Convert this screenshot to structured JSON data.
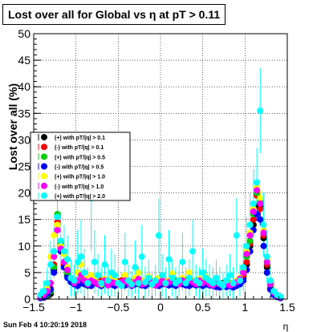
{
  "title": "Lost over all for Global vs    η at pT > 0.11",
  "timestamp": "Sun Feb  4 10:20:19 2018",
  "chart_data": {
    "type": "scatter",
    "xlabel": "η",
    "ylabel": "Lost over all (%)",
    "xlim": [
      -1.5,
      1.5
    ],
    "ylim": [
      0,
      50
    ],
    "x_ticks": [
      -1.5,
      -1,
      -0.5,
      0,
      0.5,
      1,
      1.5
    ],
    "x_tick_labels": [
      "−1.5",
      "−1",
      "−0.5",
      "0",
      "0.5",
      "1",
      "1.5"
    ],
    "y_ticks": [
      0,
      5,
      10,
      15,
      20,
      25,
      30,
      35,
      40,
      45,
      50
    ],
    "y_tick_labels": [
      "0",
      "5",
      "10",
      "15",
      "20",
      "25",
      "30",
      "35",
      "40",
      "45",
      "50"
    ],
    "grid": true,
    "legend_position": "left",
    "series": [
      {
        "name": "(+) with pT/|q| > 0.1",
        "color": "#000000",
        "marker": "circle",
        "x": [
          -1.42,
          -1.38,
          -1.34,
          -1.3,
          -1.26,
          -1.22,
          -1.18,
          -1.14,
          -1.1,
          -1.06,
          -1.02,
          -0.98,
          -0.94,
          -0.9,
          -0.86,
          -0.82,
          -0.78,
          -0.74,
          -0.7,
          -0.66,
          -0.62,
          -0.58,
          -0.54,
          -0.5,
          -0.46,
          -0.42,
          -0.38,
          -0.34,
          -0.3,
          -0.26,
          -0.22,
          -0.18,
          -0.14,
          -0.1,
          -0.06,
          -0.02,
          0.02,
          0.06,
          0.1,
          0.14,
          0.18,
          0.22,
          0.26,
          0.3,
          0.34,
          0.38,
          0.42,
          0.46,
          0.5,
          0.54,
          0.58,
          0.62,
          0.66,
          0.7,
          0.74,
          0.78,
          0.82,
          0.86,
          0.9,
          0.94,
          0.98,
          1.02,
          1.06,
          1.1,
          1.14,
          1.18,
          1.22,
          1.26,
          1.3,
          1.34,
          1.38,
          1.42
        ],
        "y": [
          0.2,
          0.3,
          0.6,
          1.0,
          5.5,
          15.5,
          9.5,
          6.0,
          4.5,
          3.5,
          3.0,
          3.2,
          3.5,
          3.2,
          3.0,
          2.8,
          3.0,
          3.0,
          3.2,
          3.3,
          3.0,
          3.0,
          3.2,
          3.3,
          3.5,
          3.0,
          3.2,
          3.0,
          2.8,
          3.0,
          3.2,
          3.0,
          3.2,
          3.5,
          3.3,
          3.0,
          3.5,
          3.2,
          3.0,
          2.8,
          3.0,
          3.2,
          3.0,
          3.5,
          3.2,
          3.0,
          3.0,
          2.8,
          3.0,
          3.2,
          3.0,
          2.8,
          2.5,
          2.5,
          3.0,
          2.8,
          2.5,
          2.5,
          2.8,
          3.0,
          4.0,
          6.5,
          10.0,
          14.0,
          17.5,
          17.5,
          11.5,
          6.0,
          2.0,
          1.0,
          0.5,
          0.3
        ]
      },
      {
        "name": "(-) with pT/|q| > 0.1",
        "color": "#ff0000",
        "marker": "circle",
        "x": [
          -1.42,
          -1.38,
          -1.34,
          -1.3,
          -1.26,
          -1.22,
          -1.18,
          -1.14,
          -1.1,
          -1.06,
          -1.02,
          -0.98,
          -0.94,
          -0.9,
          -0.86,
          -0.82,
          -0.78,
          -0.74,
          -0.7,
          -0.66,
          -0.62,
          -0.58,
          -0.54,
          -0.5,
          -0.46,
          -0.42,
          -0.38,
          -0.34,
          -0.3,
          -0.26,
          -0.22,
          -0.18,
          -0.14,
          -0.1,
          -0.06,
          -0.02,
          0.02,
          0.06,
          0.1,
          0.14,
          0.18,
          0.22,
          0.26,
          0.3,
          0.34,
          0.38,
          0.42,
          0.46,
          0.5,
          0.54,
          0.58,
          0.62,
          0.66,
          0.7,
          0.74,
          0.78,
          0.82,
          0.86,
          0.9,
          0.94,
          0.98,
          1.02,
          1.06,
          1.1,
          1.14,
          1.18,
          1.22,
          1.26,
          1.3,
          1.34,
          1.38,
          1.42
        ],
        "y": [
          0.5,
          0.8,
          1.2,
          2.0,
          6.5,
          14.5,
          10.0,
          6.5,
          5.0,
          3.8,
          3.2,
          3.0,
          3.2,
          3.5,
          3.0,
          2.8,
          3.2,
          3.0,
          3.5,
          3.2,
          3.0,
          3.3,
          3.0,
          3.2,
          3.5,
          3.2,
          3.0,
          3.2,
          3.0,
          3.3,
          3.0,
          3.2,
          3.0,
          3.2,
          3.5,
          3.2,
          3.0,
          3.3,
          3.2,
          3.0,
          3.2,
          3.0,
          3.2,
          3.0,
          3.3,
          3.5,
          3.0,
          3.2,
          3.0,
          2.8,
          3.2,
          3.0,
          2.8,
          2.6,
          2.8,
          3.0,
          2.6,
          2.5,
          3.0,
          3.2,
          4.5,
          7.0,
          10.5,
          15.0,
          19.5,
          17.0,
          12.0,
          6.5,
          2.5,
          1.2,
          0.6,
          0.4
        ]
      },
      {
        "name": "(+) with pT/|q| > 0.5",
        "color": "#00cc00",
        "marker": "circle",
        "x": [
          -1.42,
          -1.38,
          -1.34,
          -1.3,
          -1.26,
          -1.22,
          -1.18,
          -1.14,
          -1.1,
          -1.06,
          -1.02,
          -0.98,
          -0.94,
          -0.9,
          -0.86,
          -0.82,
          -0.78,
          -0.74,
          -0.7,
          -0.66,
          -0.62,
          -0.58,
          -0.54,
          -0.5,
          -0.46,
          -0.42,
          -0.38,
          -0.34,
          -0.3,
          -0.26,
          -0.22,
          -0.18,
          -0.14,
          -0.1,
          -0.06,
          -0.02,
          0.02,
          0.06,
          0.1,
          0.14,
          0.18,
          0.22,
          0.26,
          0.3,
          0.34,
          0.38,
          0.42,
          0.46,
          0.5,
          0.54,
          0.58,
          0.62,
          0.66,
          0.7,
          0.74,
          0.78,
          0.82,
          0.86,
          0.9,
          0.94,
          0.98,
          1.02,
          1.06,
          1.1,
          1.14,
          1.18,
          1.22,
          1.26,
          1.3,
          1.34,
          1.38,
          1.42
        ],
        "y": [
          0.3,
          0.5,
          0.8,
          1.5,
          6.0,
          16.0,
          10.5,
          7.0,
          5.0,
          3.5,
          3.0,
          2.8,
          3.5,
          3.0,
          2.5,
          3.2,
          3.5,
          2.8,
          3.0,
          3.5,
          2.8,
          3.2,
          3.5,
          3.0,
          2.8,
          3.3,
          3.5,
          3.0,
          3.2,
          2.8,
          3.5,
          3.0,
          2.8,
          3.2,
          3.0,
          3.5,
          3.2,
          2.8,
          3.0,
          3.3,
          3.5,
          2.8,
          3.2,
          3.0,
          2.8,
          3.5,
          3.2,
          3.0,
          2.8,
          3.2,
          3.0,
          2.7,
          2.8,
          3.0,
          2.6,
          2.8,
          3.0,
          2.7,
          3.0,
          3.5,
          5.0,
          8.0,
          11.0,
          16.0,
          20.0,
          18.5,
          12.5,
          7.0,
          2.5,
          1.0,
          0.4,
          0.3
        ]
      },
      {
        "name": "(-) with pT/|q| > 0.5",
        "color": "#0000ff",
        "marker": "circle",
        "x": [
          -1.42,
          -1.38,
          -1.34,
          -1.3,
          -1.26,
          -1.22,
          -1.18,
          -1.14,
          -1.1,
          -1.06,
          -1.02,
          -0.98,
          -0.94,
          -0.9,
          -0.86,
          -0.82,
          -0.78,
          -0.74,
          -0.7,
          -0.66,
          -0.62,
          -0.58,
          -0.54,
          -0.5,
          -0.46,
          -0.42,
          -0.38,
          -0.34,
          -0.3,
          -0.26,
          -0.22,
          -0.18,
          -0.14,
          -0.1,
          -0.06,
          -0.02,
          0.02,
          0.06,
          0.1,
          0.14,
          0.18,
          0.22,
          0.26,
          0.3,
          0.34,
          0.38,
          0.42,
          0.46,
          0.5,
          0.54,
          0.58,
          0.62,
          0.66,
          0.7,
          0.74,
          0.78,
          0.82,
          0.86,
          0.9,
          0.94,
          0.98,
          1.02,
          1.06,
          1.1,
          1.14,
          1.18,
          1.22,
          1.26,
          1.3,
          1.34,
          1.38,
          1.42
        ],
        "y": [
          0.2,
          0.4,
          1.0,
          1.8,
          5.0,
          13.0,
          9.0,
          6.0,
          4.0,
          3.2,
          2.8,
          2.5,
          3.0,
          2.8,
          2.6,
          2.5,
          3.0,
          2.8,
          2.5,
          3.2,
          2.6,
          2.8,
          2.5,
          3.0,
          2.8,
          2.6,
          3.0,
          2.5,
          2.8,
          3.0,
          2.6,
          2.5,
          3.0,
          2.8,
          2.6,
          2.5,
          2.8,
          3.0,
          2.6,
          2.8,
          2.5,
          3.0,
          2.8,
          2.6,
          2.5,
          2.8,
          2.6,
          3.0,
          2.5,
          2.8,
          2.6,
          2.5,
          2.3,
          2.2,
          2.5,
          2.3,
          2.5,
          2.2,
          2.5,
          2.8,
          3.5,
          5.5,
          9.0,
          13.0,
          16.0,
          15.0,
          10.0,
          5.0,
          1.8,
          0.8,
          0.4,
          0.2
        ]
      },
      {
        "name": "(+) with pT/|q| > 1.0",
        "color": "#ffff00",
        "marker": "circle",
        "x": [
          -1.42,
          -1.38,
          -1.34,
          -1.3,
          -1.26,
          -1.22,
          -1.18,
          -1.14,
          -1.1,
          -1.06,
          -1.02,
          -0.98,
          -0.94,
          -0.9,
          -0.86,
          -0.82,
          -0.78,
          -0.74,
          -0.7,
          -0.66,
          -0.62,
          -0.58,
          -0.54,
          -0.5,
          -0.46,
          -0.42,
          -0.38,
          -0.34,
          -0.3,
          -0.26,
          -0.22,
          -0.18,
          -0.14,
          -0.1,
          -0.06,
          -0.02,
          0.02,
          0.06,
          0.1,
          0.14,
          0.18,
          0.22,
          0.26,
          0.3,
          0.34,
          0.38,
          0.42,
          0.46,
          0.5,
          0.54,
          0.58,
          0.62,
          0.66,
          0.7,
          0.74,
          0.78,
          0.82,
          0.86,
          0.9,
          0.94,
          0.98,
          1.02,
          1.06,
          1.1,
          1.14,
          1.18,
          1.22,
          1.26,
          1.3,
          1.34,
          1.38,
          1.42
        ],
        "y": [
          0.5,
          1.0,
          2.0,
          8.0,
          12.0,
          14.0,
          10.0,
          8.5,
          6.0,
          4.0,
          3.5,
          5.0,
          6.5,
          4.0,
          3.0,
          4.5,
          4.0,
          3.0,
          2.8,
          3.8,
          3.0,
          4.0,
          3.5,
          3.0,
          2.8,
          4.5,
          3.2,
          3.0,
          4.0,
          5.0,
          3.5,
          3.0,
          4.2,
          3.5,
          3.0,
          4.0,
          3.8,
          3.2,
          3.5,
          4.8,
          3.0,
          3.5,
          4.0,
          3.2,
          5.0,
          3.5,
          3.0,
          3.8,
          3.2,
          4.2,
          3.0,
          2.8,
          3.5,
          3.0,
          2.8,
          3.2,
          2.8,
          3.0,
          3.5,
          4.0,
          5.5,
          9.0,
          12.5,
          17.0,
          21.0,
          19.0,
          13.0,
          7.5,
          3.0,
          1.5,
          0.8,
          0.5
        ]
      },
      {
        "name": "(-) with pT/|q| > 1.0",
        "color": "#ff00ff",
        "marker": "circle",
        "x": [
          -1.42,
          -1.38,
          -1.34,
          -1.3,
          -1.26,
          -1.22,
          -1.18,
          -1.14,
          -1.1,
          -1.06,
          -1.02,
          -0.98,
          -0.94,
          -0.9,
          -0.86,
          -0.82,
          -0.78,
          -0.74,
          -0.7,
          -0.66,
          -0.62,
          -0.58,
          -0.54,
          -0.5,
          -0.46,
          -0.42,
          -0.38,
          -0.34,
          -0.3,
          -0.26,
          -0.22,
          -0.18,
          -0.14,
          -0.1,
          -0.06,
          -0.02,
          0.02,
          0.06,
          0.1,
          0.14,
          0.18,
          0.22,
          0.26,
          0.3,
          0.34,
          0.38,
          0.42,
          0.46,
          0.5,
          0.54,
          0.58,
          0.62,
          0.66,
          0.7,
          0.74,
          0.78,
          0.82,
          0.86,
          0.9,
          0.94,
          0.98,
          1.02,
          1.06,
          1.1,
          1.14,
          1.18,
          1.22,
          1.26,
          1.3,
          1.34,
          1.38,
          1.42
        ],
        "y": [
          0.4,
          0.8,
          1.5,
          3.0,
          8.0,
          13.0,
          9.5,
          7.0,
          5.5,
          4.0,
          3.0,
          3.5,
          4.5,
          3.5,
          2.8,
          3.5,
          3.2,
          2.8,
          3.0,
          3.5,
          2.6,
          3.2,
          3.0,
          2.8,
          3.2,
          3.5,
          3.0,
          2.6,
          3.2,
          3.8,
          2.8,
          3.0,
          3.5,
          3.2,
          2.6,
          3.0,
          3.5,
          2.8,
          3.2,
          4.0,
          3.0,
          2.8,
          3.5,
          3.0,
          4.0,
          3.2,
          2.8,
          3.5,
          3.0,
          3.5,
          2.8,
          2.6,
          3.2,
          2.8,
          2.5,
          3.0,
          2.6,
          2.8,
          3.2,
          3.8,
          5.0,
          8.5,
          12.0,
          16.5,
          20.5,
          18.0,
          12.5,
          7.0,
          2.8,
          1.2,
          0.6,
          0.4
        ]
      },
      {
        "name": "(+) with pT/|q| > 2.0",
        "color": "#00ffff",
        "marker": "circle",
        "x": [
          -1.42,
          -1.38,
          -1.34,
          -1.3,
          -1.26,
          -1.22,
          -1.18,
          -1.14,
          -1.1,
          -1.06,
          -1.02,
          -0.98,
          -0.94,
          -0.9,
          -0.86,
          -0.82,
          -0.78,
          -0.74,
          -0.7,
          -0.66,
          -0.62,
          -0.58,
          -0.54,
          -0.5,
          -0.46,
          -0.42,
          -0.38,
          -0.34,
          -0.3,
          -0.26,
          -0.22,
          -0.18,
          -0.14,
          -0.1,
          -0.06,
          -0.02,
          0.02,
          0.06,
          0.1,
          0.14,
          0.18,
          0.22,
          0.26,
          0.3,
          0.34,
          0.38,
          0.42,
          0.46,
          0.5,
          0.54,
          0.58,
          0.62,
          0.66,
          0.7,
          0.74,
          0.78,
          0.82,
          0.86,
          0.9,
          0.94,
          0.98,
          1.02,
          1.06,
          1.1,
          1.14,
          1.18,
          1.22,
          1.26,
          1.3,
          1.34,
          1.38,
          1.42
        ],
        "y": [
          0.8,
          1.5,
          3.0,
          6.5,
          9.0,
          15.5,
          11.0,
          9.0,
          7.5,
          4.0,
          3.5,
          7.0,
          8.0,
          5.0,
          3.0,
          19.0,
          7.0,
          4.5,
          3.0,
          6.5,
          3.5,
          5.0,
          4.5,
          3.0,
          2.5,
          7.0,
          3.5,
          2.8,
          6.0,
          3.0,
          8.0,
          3.2,
          4.0,
          2.8,
          3.5,
          12.0,
          4.5,
          3.0,
          7.5,
          4.0,
          3.0,
          3.5,
          7.0,
          3.0,
          4.0,
          9.0,
          3.5,
          3.0,
          5.0,
          4.0,
          3.5,
          3.0,
          4.0,
          3.0,
          2.5,
          3.5,
          4.5,
          3.0,
          12.0,
          3.5,
          6.0,
          10.0,
          14.0,
          18.0,
          22.0,
          35.5,
          14.0,
          8.0,
          3.5,
          1.5,
          0.8,
          0.5
        ],
        "err": [
          1.2,
          2.0,
          3.0,
          4.5,
          5.0,
          6.0,
          5.5,
          5.0,
          4.5,
          3.5,
          3.0,
          6.0,
          7.0,
          4.5,
          3.0,
          10.0,
          6.0,
          4.0,
          3.0,
          5.5,
          3.0,
          4.5,
          4.0,
          3.0,
          2.5,
          5.5,
          3.0,
          2.5,
          5.0,
          3.0,
          6.0,
          3.0,
          3.5,
          2.5,
          3.0,
          7.0,
          4.0,
          3.0,
          5.5,
          3.5,
          3.0,
          3.0,
          5.5,
          3.0,
          3.5,
          6.0,
          3.0,
          3.0,
          4.5,
          3.5,
          3.0,
          3.0,
          3.5,
          3.0,
          2.5,
          3.0,
          4.0,
          3.0,
          7.0,
          3.0,
          4.5,
          5.5,
          6.0,
          6.5,
          6.5,
          8.0,
          6.0,
          5.0,
          3.0,
          1.8,
          1.2,
          0.8
        ]
      }
    ]
  }
}
